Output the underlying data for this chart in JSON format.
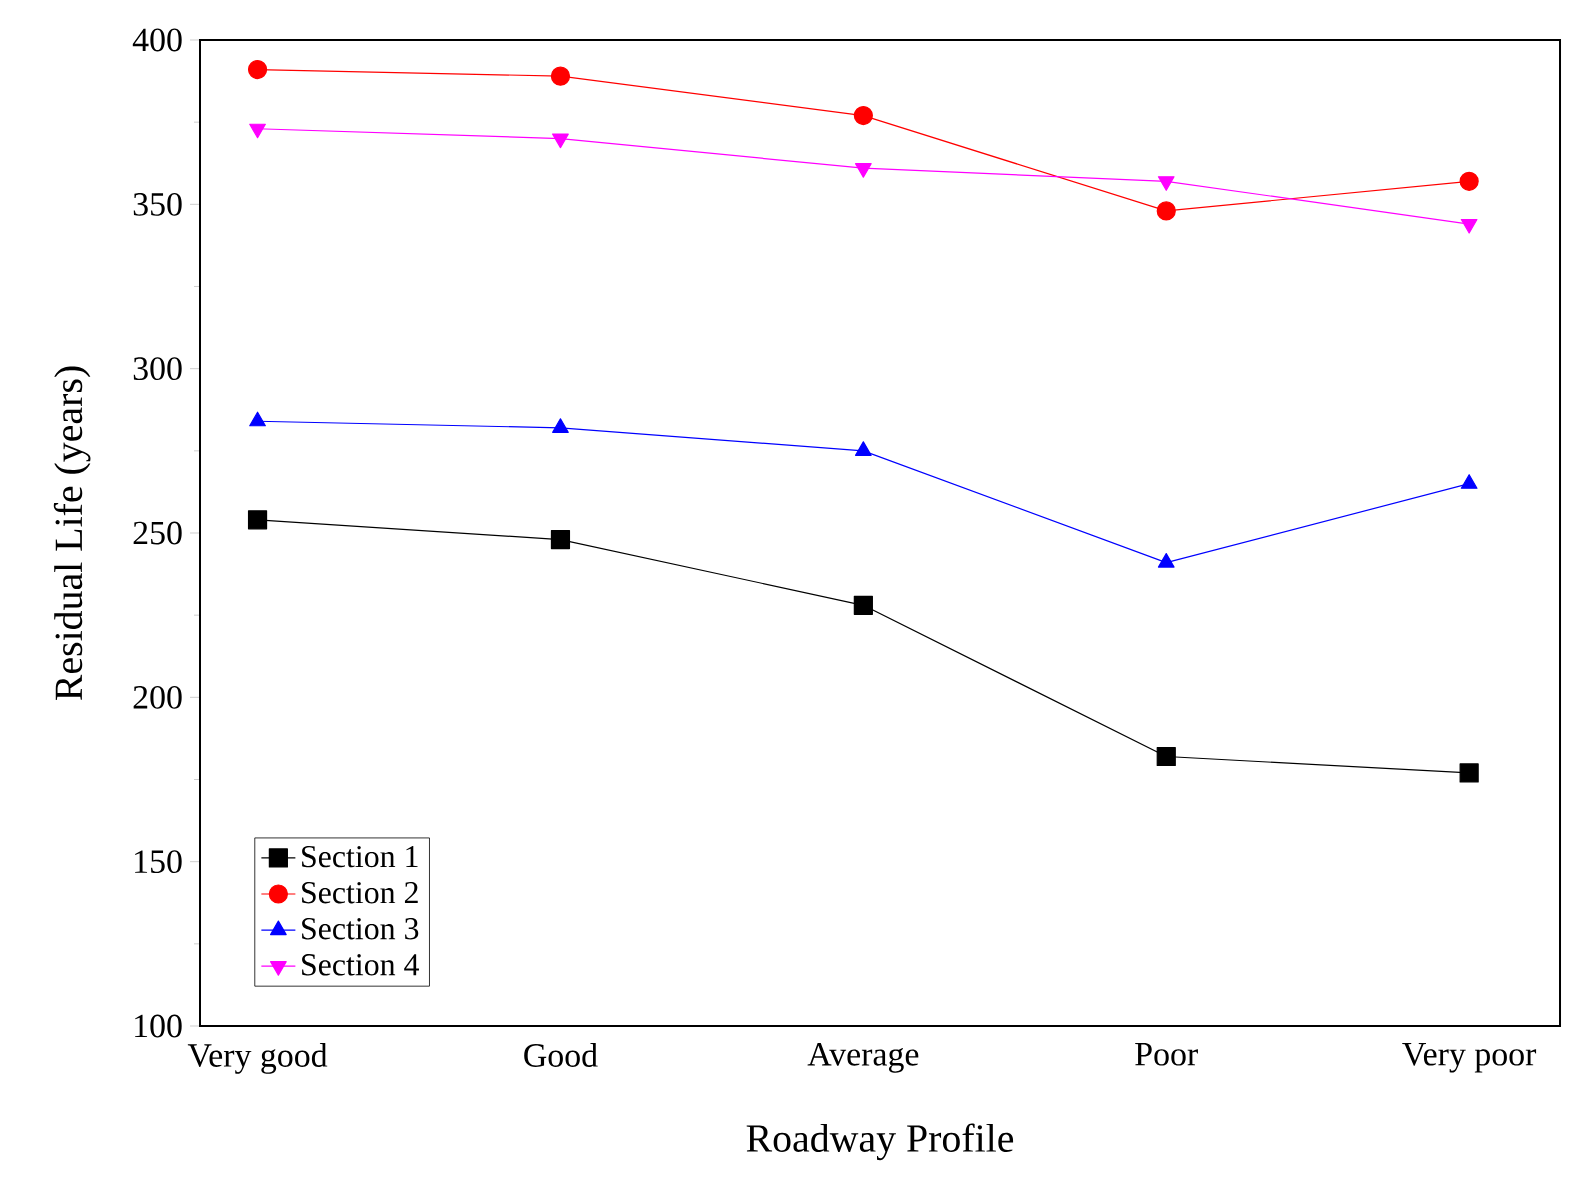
{
  "chart_data": {
    "type": "line",
    "xlabel": "Roadway Profile",
    "ylabel": "Residual Life (years)",
    "categories": [
      "Very good",
      "Good",
      "Average",
      "Poor",
      "Very poor"
    ],
    "series": [
      {
        "name": "Section 1",
        "color": "#000000",
        "marker": "square",
        "values": [
          254,
          248,
          228,
          182,
          177
        ]
      },
      {
        "name": "Section 2",
        "color": "#ff0000",
        "marker": "circle",
        "values": [
          391,
          389,
          377,
          348,
          357
        ]
      },
      {
        "name": "Section 3",
        "color": "#0000ff",
        "marker": "triangle",
        "values": [
          284,
          282,
          275,
          241,
          265
        ]
      },
      {
        "name": "Section 4",
        "color": "#ff00ff",
        "marker": "triangle down",
        "values": [
          373,
          370,
          361,
          357,
          344
        ]
      }
    ],
    "ylim": [
      100,
      400
    ],
    "yticks": [
      100,
      150,
      200,
      250,
      300,
      350,
      400
    ],
    "grid": false,
    "legend": "bottom left",
    "line_style": "solid"
  }
}
